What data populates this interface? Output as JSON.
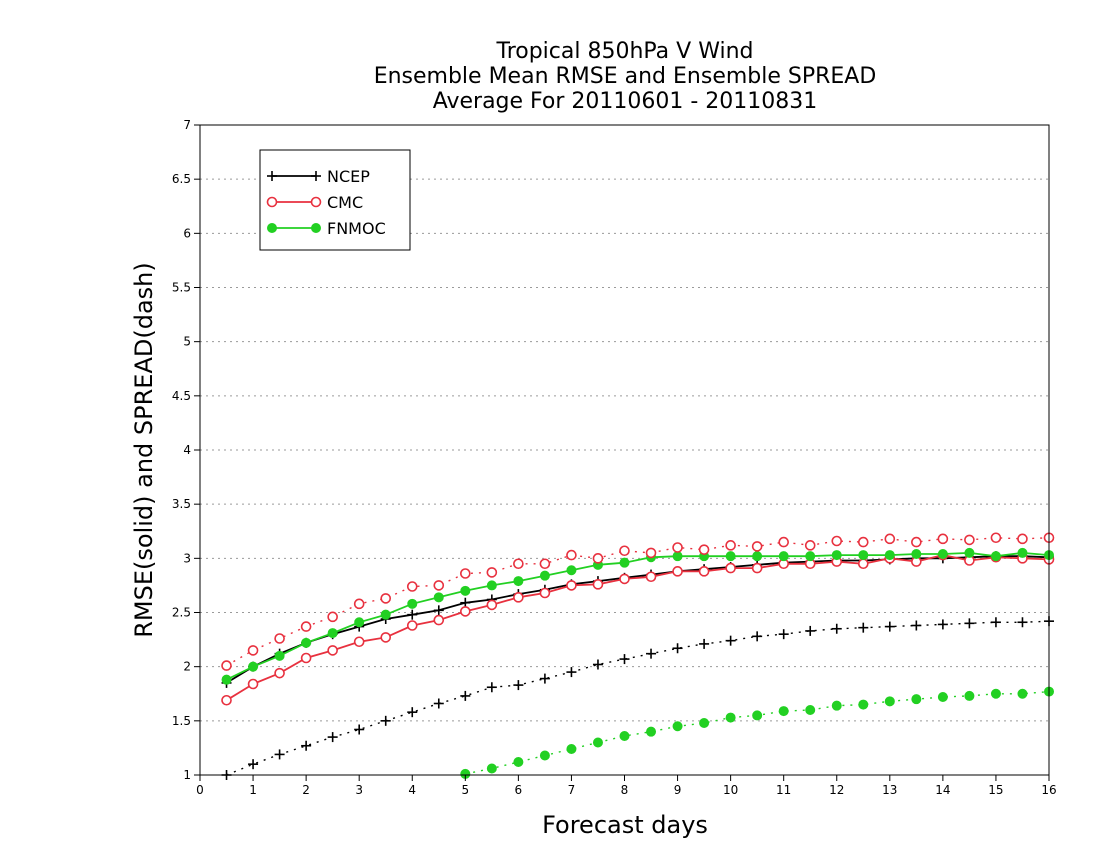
{
  "chart_data": {
    "type": "line",
    "title": [
      "Tropical 850hPa V Wind",
      "Ensemble Mean RMSE and Ensemble SPREAD",
      "Average For 20110601 - 20110831"
    ],
    "xlabel": "Forecast days",
    "ylabel": "RMSE(solid) and SPREAD(dash)",
    "xlim": [
      0,
      16
    ],
    "ylim": [
      1,
      7
    ],
    "xticks": [
      "0",
      "1",
      "2",
      "3",
      "4",
      "5",
      "6",
      "7",
      "8",
      "9",
      "10",
      "11",
      "12",
      "13",
      "14",
      "15",
      "16"
    ],
    "yticks": [
      "1",
      "1.5",
      "2",
      "2.5",
      "3",
      "3.5",
      "4",
      "4.5",
      "5",
      "5.5",
      "6",
      "6.5",
      "7"
    ],
    "grid": true,
    "legend_position": "top-left",
    "x": [
      0.5,
      1,
      1.5,
      2,
      2.5,
      3,
      3.5,
      4,
      4.5,
      5,
      5.5,
      6,
      6.5,
      7,
      7.5,
      8,
      8.5,
      9,
      9.5,
      10,
      10.5,
      11,
      11.5,
      12,
      12.5,
      13,
      13.5,
      14,
      14.5,
      15,
      15.5,
      16
    ],
    "series": [
      {
        "name": "NCEP",
        "metric": "RMSE",
        "line": "solid",
        "marker": "plus",
        "color": "#000000",
        "values": [
          1.85,
          2.0,
          2.12,
          2.22,
          2.3,
          2.37,
          2.44,
          2.48,
          2.52,
          2.59,
          2.62,
          2.67,
          2.71,
          2.76,
          2.79,
          2.82,
          2.85,
          2.88,
          2.9,
          2.92,
          2.94,
          2.96,
          2.97,
          2.98,
          2.98,
          2.99,
          3.0,
          3.0,
          3.01,
          3.02,
          3.02,
          3.01
        ]
      },
      {
        "name": "CMC",
        "metric": "RMSE",
        "line": "solid",
        "marker": "open-circle",
        "color": "#e8313f",
        "values": [
          1.69,
          1.84,
          1.94,
          2.08,
          2.15,
          2.23,
          2.27,
          2.38,
          2.43,
          2.51,
          2.57,
          2.64,
          2.68,
          2.75,
          2.76,
          2.81,
          2.83,
          2.88,
          2.88,
          2.91,
          2.91,
          2.95,
          2.95,
          2.97,
          2.95,
          3.0,
          2.97,
          3.03,
          2.98,
          3.01,
          3.0,
          2.99
        ]
      },
      {
        "name": "FNMOC",
        "metric": "RMSE",
        "line": "solid",
        "marker": "filled-circle",
        "color": "#22d022",
        "values": [
          1.88,
          2.0,
          2.1,
          2.22,
          2.31,
          2.41,
          2.48,
          2.58,
          2.64,
          2.7,
          2.75,
          2.79,
          2.84,
          2.89,
          2.94,
          2.96,
          3.01,
          3.02,
          3.02,
          3.02,
          3.02,
          3.02,
          3.02,
          3.03,
          3.03,
          3.03,
          3.04,
          3.04,
          3.05,
          3.02,
          3.05,
          3.03
        ]
      },
      {
        "name": "NCEP",
        "metric": "SPREAD",
        "line": "dash",
        "marker": "plus",
        "color": "#000000",
        "values": [
          1.0,
          1.1,
          1.19,
          1.27,
          1.35,
          1.42,
          1.5,
          1.58,
          1.66,
          1.73,
          1.81,
          1.83,
          1.89,
          1.95,
          2.02,
          2.07,
          2.12,
          2.17,
          2.21,
          2.24,
          2.28,
          2.3,
          2.33,
          2.35,
          2.36,
          2.37,
          2.38,
          2.39,
          2.4,
          2.41,
          2.41,
          2.42
        ]
      },
      {
        "name": "CMC",
        "metric": "SPREAD",
        "line": "dash",
        "marker": "open-circle",
        "color": "#e8313f",
        "values": [
          2.01,
          2.15,
          2.26,
          2.37,
          2.46,
          2.58,
          2.63,
          2.74,
          2.75,
          2.86,
          2.87,
          2.95,
          2.95,
          3.03,
          3.0,
          3.07,
          3.05,
          3.1,
          3.08,
          3.12,
          3.11,
          3.15,
          3.12,
          3.16,
          3.15,
          3.18,
          3.15,
          3.18,
          3.17,
          3.19,
          3.18,
          3.19
        ]
      },
      {
        "name": "FNMOC",
        "metric": "SPREAD",
        "line": "dash",
        "marker": "filled-circle",
        "color": "#22d022",
        "values": [
          null,
          null,
          null,
          null,
          null,
          null,
          null,
          null,
          null,
          1.01,
          1.06,
          1.12,
          1.18,
          1.24,
          1.3,
          1.36,
          1.4,
          1.45,
          1.48,
          1.53,
          1.55,
          1.59,
          1.6,
          1.64,
          1.65,
          1.68,
          1.7,
          1.72,
          1.73,
          1.75,
          1.75,
          1.77
        ]
      }
    ],
    "legend": [
      {
        "label": "NCEP",
        "marker": "plus",
        "color": "#000000"
      },
      {
        "label": "CMC",
        "marker": "open-circle",
        "color": "#e8313f"
      },
      {
        "label": "FNMOC",
        "marker": "filled-circle",
        "color": "#22d022"
      }
    ]
  }
}
